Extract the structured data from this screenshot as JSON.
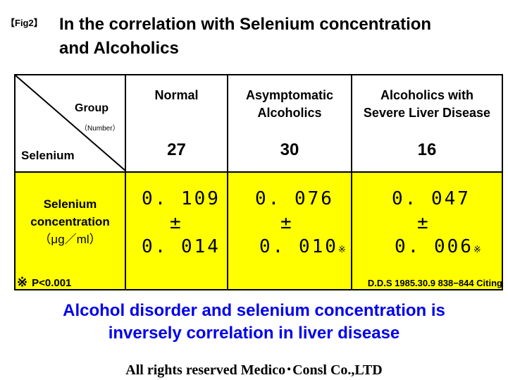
{
  "fig_tag": "【Fig2】",
  "title_lines": [
    "In the correlation with Selenium concentration",
    "and Alcoholics"
  ],
  "table": {
    "corner": {
      "group": "Group",
      "number": "（Number）",
      "selenium": "Selenium"
    },
    "columns": [
      {
        "lines": [
          "Normal"
        ],
        "number": "27"
      },
      {
        "lines": [
          "Asymptomatic",
          "Alcoholics"
        ],
        "number": "30"
      },
      {
        "lines": [
          "Alcoholics with",
          "Severe Liver Disease"
        ],
        "number": "16"
      }
    ],
    "row_label": {
      "line1": "Selenium",
      "line2": "concentration",
      "unit": "（μg／ml）"
    },
    "values": [
      {
        "mean": "0. 109",
        "pm": "±",
        "sd": "0. 014",
        "mark": ""
      },
      {
        "mean": "0. 076",
        "pm": "±",
        "sd": "0. 010",
        "mark": "※"
      },
      {
        "mean": "0. 047",
        "pm": "±",
        "sd": "0. 006",
        "mark": "※"
      }
    ]
  },
  "note": {
    "symbol": "※",
    "text": "P<0.001"
  },
  "citation": "D.D.S 1985.30.9 838−844 Citing",
  "conclusion_lines": [
    "Alcohol disorder and selenium concentration is",
    "inversely correlation in liver disease"
  ],
  "copyright": "All rights reserved Medico･Consl Co.,LTD",
  "colors": {
    "highlight": "#ffff00",
    "conclusion": "#0000ee"
  }
}
